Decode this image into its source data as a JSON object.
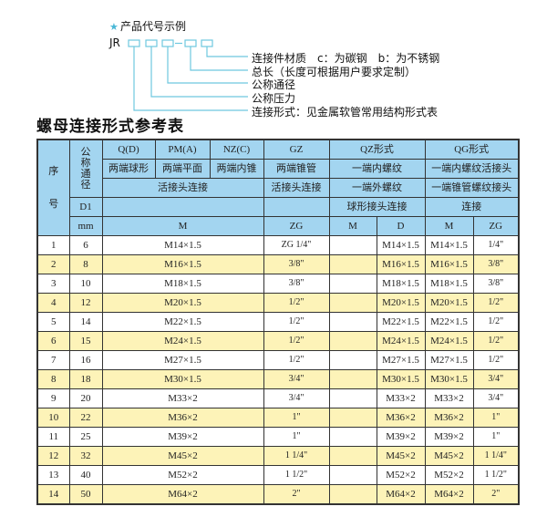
{
  "example": {
    "star_icon": "star-icon",
    "heading": "产品代号示例",
    "code_prefix": "JR",
    "accent": "#49b7d6",
    "labels": [
      "连接件材质　c：为碳钢　b：为不锈钢",
      "总长（长度可根据用户要求定制）",
      "公称通径",
      "公称压力",
      "连接形式：见金属软管常用结构形式表"
    ]
  },
  "table_title": "螺母连接形式参考表",
  "colors": {
    "header": "#a3d5f0",
    "alt_row": "#fdf3b8"
  },
  "header": {
    "seq": "序号",
    "dn": "公称通径",
    "row1": [
      "Q(D)",
      "PM(A)",
      "NZ(C)",
      "GZ",
      "QZ形式",
      "QG形式"
    ],
    "row2": [
      "两端球形",
      "两端平面",
      "两端内锥",
      "两端锥管",
      "一端内螺纹",
      "一端内螺纹活接头"
    ],
    "row3": [
      "活接头连接",
      "活接头连接",
      "一端外螺纹",
      "一端锥管螺纹接头"
    ],
    "row4": [
      "D1",
      "",
      "",
      "球形接头连接",
      "连接"
    ],
    "row5": [
      "mm",
      "M",
      "ZG",
      "M",
      "D",
      "M",
      "ZG"
    ]
  },
  "rows": [
    {
      "no": "1",
      "dn": "6",
      "m": "M14×1.5",
      "zg": "ZG 1/4\"",
      "qz_m": "",
      "qz_d": "M14×1.5",
      "qg_m": "M14×1.5",
      "qg_zg": "1/4\""
    },
    {
      "no": "2",
      "dn": "8",
      "m": "M16×1.5",
      "zg": "3/8\"",
      "qz_m": "",
      "qz_d": "M16×1.5",
      "qg_m": "M16×1.5",
      "qg_zg": "3/8\""
    },
    {
      "no": "3",
      "dn": "10",
      "m": "M18×1.5",
      "zg": "3/8\"",
      "qz_m": "",
      "qz_d": "M18×1.5",
      "qg_m": "M18×1.5",
      "qg_zg": "3/8\""
    },
    {
      "no": "4",
      "dn": "12",
      "m": "M20×1.5",
      "zg": "1/2\"",
      "qz_m": "",
      "qz_d": "M20×1.5",
      "qg_m": "M20×1.5",
      "qg_zg": "1/2\""
    },
    {
      "no": "5",
      "dn": "14",
      "m": "M22×1.5",
      "zg": "1/2\"",
      "qz_m": "",
      "qz_d": "M22×1.5",
      "qg_m": "M22×1.5",
      "qg_zg": "1/2\""
    },
    {
      "no": "6",
      "dn": "15",
      "m": "M24×1.5",
      "zg": "1/2\"",
      "qz_m": "",
      "qz_d": "M24×1.5",
      "qg_m": "M24×1.5",
      "qg_zg": "1/2\""
    },
    {
      "no": "7",
      "dn": "16",
      "m": "M27×1.5",
      "zg": "1/2\"",
      "qz_m": "",
      "qz_d": "M27×1.5",
      "qg_m": "M27×1.5",
      "qg_zg": "1/2\""
    },
    {
      "no": "8",
      "dn": "18",
      "m": "M30×1.5",
      "zg": "3/4\"",
      "qz_m": "",
      "qz_d": "M30×1.5",
      "qg_m": "M30×1.5",
      "qg_zg": "3/4\""
    },
    {
      "no": "9",
      "dn": "20",
      "m": "M33×2",
      "zg": "3/4\"",
      "qz_m": "",
      "qz_d": "M33×2",
      "qg_m": "M33×2",
      "qg_zg": "3/4\""
    },
    {
      "no": "10",
      "dn": "22",
      "m": "M36×2",
      "zg": "1\"",
      "qz_m": "",
      "qz_d": "M36×2",
      "qg_m": "M36×2",
      "qg_zg": "1\""
    },
    {
      "no": "11",
      "dn": "25",
      "m": "M39×2",
      "zg": "1\"",
      "qz_m": "",
      "qz_d": "M39×2",
      "qg_m": "M39×2",
      "qg_zg": "1\""
    },
    {
      "no": "12",
      "dn": "32",
      "m": "M45×2",
      "zg": "1 1/4\"",
      "qz_m": "",
      "qz_d": "M45×2",
      "qg_m": "M45×2",
      "qg_zg": "1 1/4\""
    },
    {
      "no": "13",
      "dn": "40",
      "m": "M52×2",
      "zg": "1 1/2\"",
      "qz_m": "",
      "qz_d": "M52×2",
      "qg_m": "M52×2",
      "qg_zg": "1 1/2\""
    },
    {
      "no": "14",
      "dn": "50",
      "m": "M64×2",
      "zg": "2\"",
      "qz_m": "",
      "qz_d": "M64×2",
      "qg_m": "M64×2",
      "qg_zg": "2\""
    }
  ]
}
